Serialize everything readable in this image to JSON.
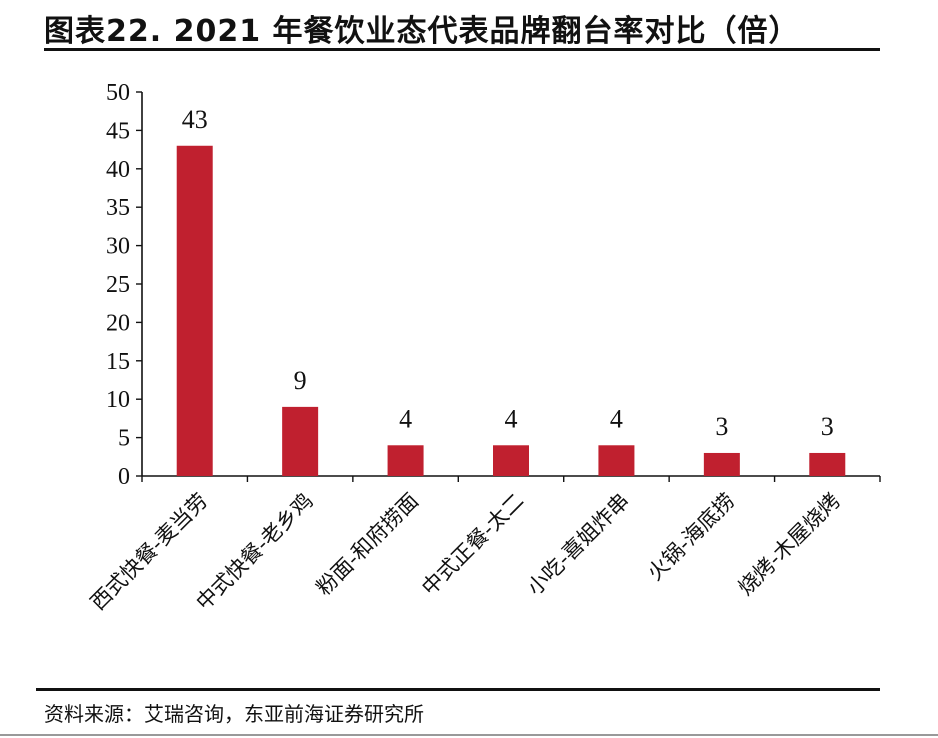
{
  "title": "图表22. 2021 年餐饮业态代表品牌翻台率对比（倍）",
  "source": "资料来源：艾瑞咨询，东亚前海证券研究所",
  "chart_data": {
    "type": "bar",
    "categories": [
      "西式快餐-麦当劳",
      "中式快餐-老乡鸡",
      "粉面-和府捞面",
      "中式正餐-太二",
      "小吃-喜姐炸串",
      "火锅-海底捞",
      "烧烤-木屋烧烤"
    ],
    "values": [
      43,
      9,
      4,
      4,
      4,
      3,
      3
    ],
    "data_labels": [
      "43",
      "9",
      "4",
      "4",
      "4",
      "3",
      "3"
    ],
    "yticks": [
      "0",
      "5",
      "10",
      "15",
      "20",
      "25",
      "30",
      "35",
      "40",
      "45",
      "50"
    ],
    "ylim": [
      0,
      50
    ],
    "ylabel": "",
    "xlabel": "",
    "grid": false,
    "bar_color": "#c0202f"
  }
}
